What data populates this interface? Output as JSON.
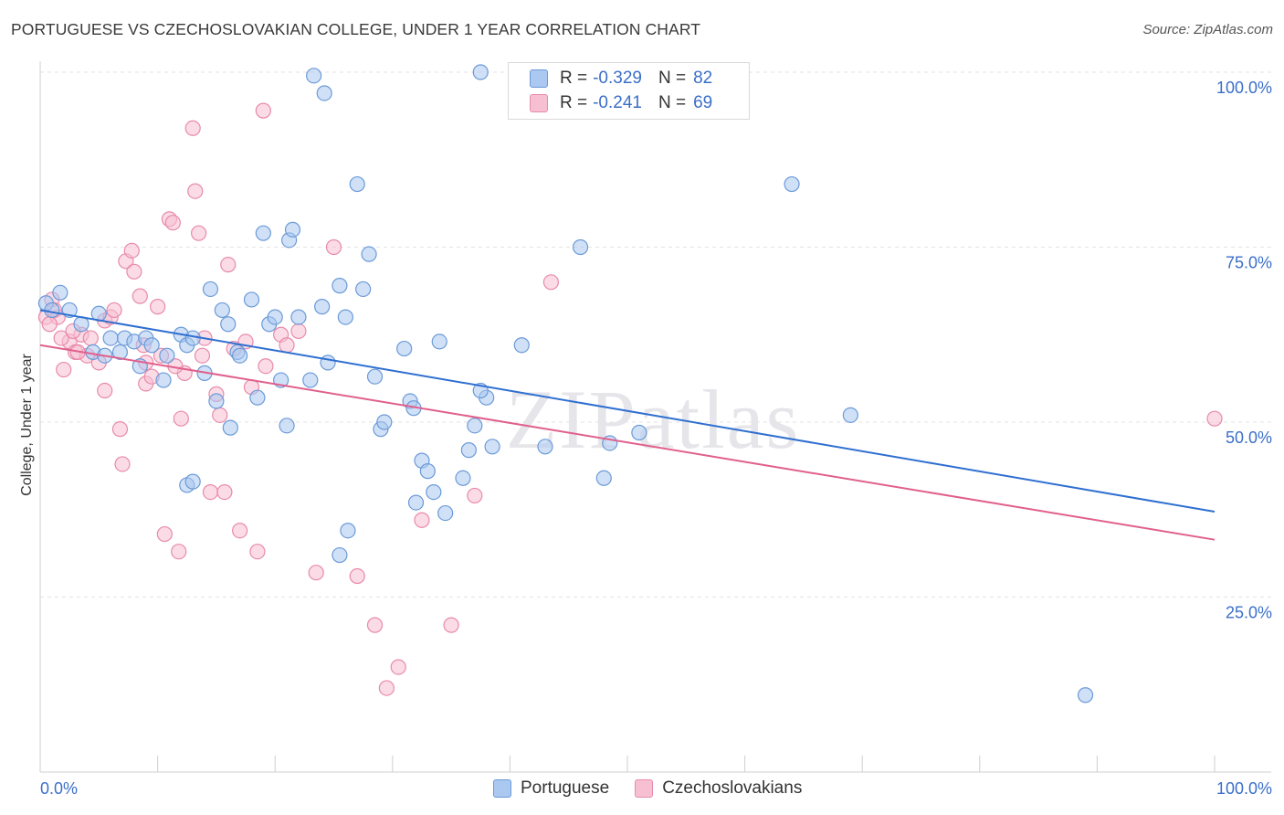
{
  "header": {
    "title": "PORTUGUESE VS CZECHOSLOVAKIAN COLLEGE, UNDER 1 YEAR CORRELATION CHART",
    "source": "Source: ZipAtlas.com"
  },
  "legend": {
    "rows": [
      {
        "r_label": "R =",
        "r_value": "-0.329",
        "n_label": "N =",
        "n_value": "82"
      },
      {
        "r_label": "R =",
        "r_value": "-0.241",
        "n_label": "N =",
        "n_value": "69"
      }
    ]
  },
  "bottom_legend": [
    "Portuguese",
    "Czechoslovakians"
  ],
  "watermark": "ZIPatlas",
  "chart_data": {
    "type": "scatter",
    "title": "PORTUGUESE VS CZECHOSLOVAKIAN COLLEGE, UNDER 1 YEAR CORRELATION CHART",
    "xlabel": "",
    "ylabel": "College, Under 1 year",
    "xlim": [
      0,
      100
    ],
    "ylim": [
      0,
      100
    ],
    "x_tick_labels": [
      "0.0%",
      "100.0%"
    ],
    "y_tick_labels": [
      "25.0%",
      "50.0%",
      "75.0%",
      "100.0%"
    ],
    "y_ticks": [
      25,
      50,
      75,
      100
    ],
    "grid": true,
    "legend_position": "top-center",
    "colors": {
      "portuguese_fill": "#aac8f0",
      "portuguese_stroke": "#6b9ad8",
      "portuguese_line": "#2f6fd1",
      "czech_fill": "#f7c0d2",
      "czech_stroke": "#e88aab",
      "czech_line": "#e0608c",
      "tick_label": "#3b6fc9"
    },
    "series": [
      {
        "name": "Portuguese",
        "trend": {
          "x": [
            0,
            100
          ],
          "y": [
            66.0,
            37.2
          ]
        },
        "points": [
          [
            0.5,
            67
          ],
          [
            1,
            66
          ],
          [
            1.7,
            68.5
          ],
          [
            2.5,
            66
          ],
          [
            3.5,
            64
          ],
          [
            4.5,
            60
          ],
          [
            5,
            65.5
          ],
          [
            5.5,
            59.5
          ],
          [
            6,
            62
          ],
          [
            6.8,
            60
          ],
          [
            7.2,
            62
          ],
          [
            8,
            61.5
          ],
          [
            8.5,
            58
          ],
          [
            9,
            62
          ],
          [
            9.5,
            61
          ],
          [
            10.5,
            56
          ],
          [
            10.8,
            59.5
          ],
          [
            12,
            62.5
          ],
          [
            12.5,
            61
          ],
          [
            13,
            62
          ],
          [
            14,
            57
          ],
          [
            12.5,
            41
          ],
          [
            13,
            41.5
          ],
          [
            14.5,
            69
          ],
          [
            15,
            53
          ],
          [
            15.5,
            66
          ],
          [
            16,
            64
          ],
          [
            16.2,
            49.2
          ],
          [
            16.8,
            60
          ],
          [
            17,
            59.5
          ],
          [
            18,
            67.5
          ],
          [
            18.5,
            53.5
          ],
          [
            19,
            77
          ],
          [
            19.5,
            64
          ],
          [
            20,
            65
          ],
          [
            20.5,
            56
          ],
          [
            21,
            49.5
          ],
          [
            21.2,
            76
          ],
          [
            21.5,
            77.5
          ],
          [
            22,
            65
          ],
          [
            23,
            56
          ],
          [
            24,
            66.5
          ],
          [
            23.3,
            99.5
          ],
          [
            24.2,
            97
          ],
          [
            24.5,
            58.5
          ],
          [
            25.5,
            69.5
          ],
          [
            26,
            65
          ],
          [
            26.2,
            34.5
          ],
          [
            25.5,
            31
          ],
          [
            27,
            84
          ],
          [
            27.5,
            69
          ],
          [
            28,
            74
          ],
          [
            28.5,
            56.5
          ],
          [
            29,
            49
          ],
          [
            29.3,
            50
          ],
          [
            31,
            60.5
          ],
          [
            31.5,
            53
          ],
          [
            31.8,
            52
          ],
          [
            32,
            38.5
          ],
          [
            32.5,
            44.5
          ],
          [
            33,
            43
          ],
          [
            33.5,
            40
          ],
          [
            34,
            61.5
          ],
          [
            34.5,
            37
          ],
          [
            36,
            42
          ],
          [
            36.5,
            46
          ],
          [
            37,
            49.5
          ],
          [
            38,
            53.5
          ],
          [
            38.5,
            46.5
          ],
          [
            37.5,
            54.5
          ],
          [
            37.5,
            100
          ],
          [
            41,
            61
          ],
          [
            43,
            46.5
          ],
          [
            46,
            75
          ],
          [
            48,
            42
          ],
          [
            48.5,
            47
          ],
          [
            51,
            48.5
          ],
          [
            64,
            84
          ],
          [
            69,
            51
          ],
          [
            89,
            11
          ]
        ]
      },
      {
        "name": "Czechoslovakians",
        "trend": {
          "x": [
            0,
            100
          ],
          "y": [
            61.0,
            33.2
          ]
        },
        "points": [
          [
            0.5,
            65
          ],
          [
            1,
            67.5
          ],
          [
            1.5,
            65
          ],
          [
            2,
            57.5
          ],
          [
            2.5,
            61.5
          ],
          [
            3,
            60
          ],
          [
            3.5,
            62.5
          ],
          [
            4,
            59.5
          ],
          [
            4.3,
            62
          ],
          [
            5,
            58.5
          ],
          [
            5.5,
            64.5
          ],
          [
            6,
            65
          ],
          [
            5.5,
            54.5
          ],
          [
            6.3,
            66
          ],
          [
            6.8,
            49
          ],
          [
            7,
            44
          ],
          [
            7.3,
            73
          ],
          [
            7.8,
            74.5
          ],
          [
            8,
            71.5
          ],
          [
            8.5,
            68
          ],
          [
            9,
            58.5
          ],
          [
            9,
            55.5
          ],
          [
            9.5,
            56.5
          ],
          [
            10,
            66.5
          ],
          [
            10.3,
            59.5
          ],
          [
            10.6,
            34
          ],
          [
            11,
            79
          ],
          [
            11.3,
            78.5
          ],
          [
            11.8,
            31.5
          ],
          [
            12,
            50.5
          ],
          [
            12.3,
            57
          ],
          [
            13,
            92
          ],
          [
            13.2,
            83
          ],
          [
            13.5,
            77
          ],
          [
            14,
            62
          ],
          [
            14.5,
            40
          ],
          [
            15,
            54
          ],
          [
            15.3,
            51
          ],
          [
            15.7,
            40
          ],
          [
            16,
            72.5
          ],
          [
            16.5,
            60.5
          ],
          [
            17,
            34.5
          ],
          [
            17.5,
            61.5
          ],
          [
            18,
            55
          ],
          [
            18.5,
            31.5
          ],
          [
            19,
            94.5
          ],
          [
            19.2,
            58
          ],
          [
            20.5,
            62.5
          ],
          [
            21,
            61
          ],
          [
            22,
            63
          ],
          [
            23.5,
            28.5
          ],
          [
            25,
            75
          ],
          [
            27,
            28
          ],
          [
            28.5,
            21
          ],
          [
            29.5,
            12
          ],
          [
            30.5,
            15
          ],
          [
            32.5,
            36
          ],
          [
            35,
            21
          ],
          [
            37,
            39.5
          ],
          [
            43.5,
            70
          ],
          [
            100,
            50.5
          ],
          [
            1.8,
            62
          ],
          [
            3.2,
            60
          ],
          [
            8.8,
            61
          ],
          [
            11.5,
            58
          ],
          [
            13.8,
            59.5
          ],
          [
            2.8,
            63
          ],
          [
            0.8,
            64
          ],
          [
            1.2,
            66
          ]
        ]
      }
    ]
  }
}
